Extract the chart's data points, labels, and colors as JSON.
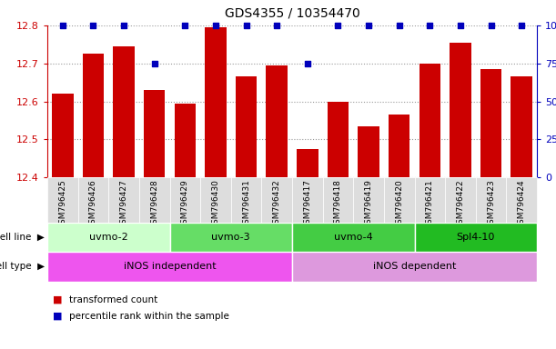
{
  "title": "GDS4355 / 10354470",
  "samples": [
    "GSM796425",
    "GSM796426",
    "GSM796427",
    "GSM796428",
    "GSM796429",
    "GSM796430",
    "GSM796431",
    "GSM796432",
    "GSM796417",
    "GSM796418",
    "GSM796419",
    "GSM796420",
    "GSM796421",
    "GSM796422",
    "GSM796423",
    "GSM796424"
  ],
  "bar_values": [
    12.62,
    12.725,
    12.745,
    12.63,
    12.595,
    12.795,
    12.665,
    12.695,
    12.475,
    12.6,
    12.535,
    12.565,
    12.7,
    12.755,
    12.685,
    12.665
  ],
  "percentile_values": [
    100,
    100,
    100,
    75,
    100,
    100,
    100,
    100,
    75,
    100,
    100,
    100,
    100,
    100,
    100,
    100
  ],
  "ylim_min": 12.4,
  "ylim_max": 12.8,
  "yticks_left": [
    12.4,
    12.5,
    12.6,
    12.7,
    12.8
  ],
  "yticks_right": [
    0,
    25,
    50,
    75,
    100
  ],
  "bar_color": "#cc0000",
  "percentile_color": "#0000bb",
  "cell_line_groups": [
    {
      "label": "uvmo-2",
      "start": 0,
      "end": 3,
      "color": "#ccffcc"
    },
    {
      "label": "uvmo-3",
      "start": 4,
      "end": 7,
      "color": "#66dd66"
    },
    {
      "label": "uvmo-4",
      "start": 8,
      "end": 11,
      "color": "#44cc44"
    },
    {
      "label": "Spl4-10",
      "start": 12,
      "end": 15,
      "color": "#22bb22"
    }
  ],
  "cell_type_groups": [
    {
      "label": "iNOS independent",
      "start": 0,
      "end": 7,
      "color": "#ee55ee"
    },
    {
      "label": "iNOS dependent",
      "start": 8,
      "end": 15,
      "color": "#dd99dd"
    }
  ],
  "legend_items": [
    {
      "label": "transformed count",
      "color": "#cc0000"
    },
    {
      "label": "percentile rank within the sample",
      "color": "#0000bb"
    }
  ],
  "background_color": "#ffffff"
}
